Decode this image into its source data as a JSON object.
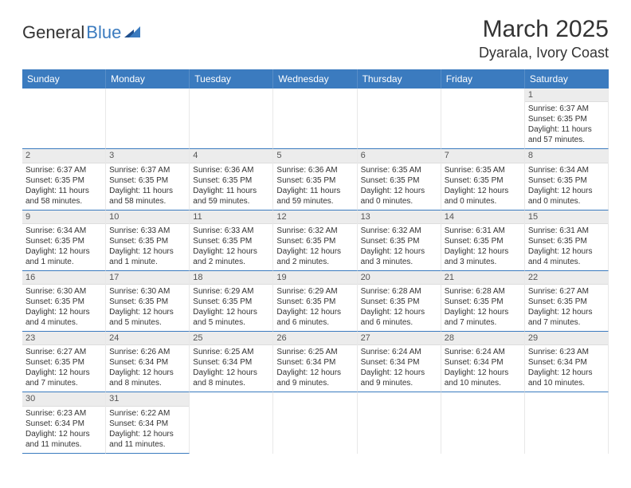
{
  "logo": {
    "part1": "General",
    "part2": "Blue"
  },
  "title": "March 2025",
  "location": "Dyarala, Ivory Coast",
  "weekdays": [
    "Sunday",
    "Monday",
    "Tuesday",
    "Wednesday",
    "Thursday",
    "Friday",
    "Saturday"
  ],
  "colors": {
    "header_bg": "#3b7bbf",
    "header_text": "#ffffff",
    "daynum_bg": "#ececec",
    "cell_border_bottom": "#3b7bbf",
    "cell_border_right": "#e8e8e8",
    "text": "#333333"
  },
  "layout": {
    "leading_blank_cells": 6,
    "total_cells": 42
  },
  "days": [
    {
      "n": "1",
      "sunrise": "Sunrise: 6:37 AM",
      "sunset": "Sunset: 6:35 PM",
      "daylight": "Daylight: 11 hours and 57 minutes."
    },
    {
      "n": "2",
      "sunrise": "Sunrise: 6:37 AM",
      "sunset": "Sunset: 6:35 PM",
      "daylight": "Daylight: 11 hours and 58 minutes."
    },
    {
      "n": "3",
      "sunrise": "Sunrise: 6:37 AM",
      "sunset": "Sunset: 6:35 PM",
      "daylight": "Daylight: 11 hours and 58 minutes."
    },
    {
      "n": "4",
      "sunrise": "Sunrise: 6:36 AM",
      "sunset": "Sunset: 6:35 PM",
      "daylight": "Daylight: 11 hours and 59 minutes."
    },
    {
      "n": "5",
      "sunrise": "Sunrise: 6:36 AM",
      "sunset": "Sunset: 6:35 PM",
      "daylight": "Daylight: 11 hours and 59 minutes."
    },
    {
      "n": "6",
      "sunrise": "Sunrise: 6:35 AM",
      "sunset": "Sunset: 6:35 PM",
      "daylight": "Daylight: 12 hours and 0 minutes."
    },
    {
      "n": "7",
      "sunrise": "Sunrise: 6:35 AM",
      "sunset": "Sunset: 6:35 PM",
      "daylight": "Daylight: 12 hours and 0 minutes."
    },
    {
      "n": "8",
      "sunrise": "Sunrise: 6:34 AM",
      "sunset": "Sunset: 6:35 PM",
      "daylight": "Daylight: 12 hours and 0 minutes."
    },
    {
      "n": "9",
      "sunrise": "Sunrise: 6:34 AM",
      "sunset": "Sunset: 6:35 PM",
      "daylight": "Daylight: 12 hours and 1 minute."
    },
    {
      "n": "10",
      "sunrise": "Sunrise: 6:33 AM",
      "sunset": "Sunset: 6:35 PM",
      "daylight": "Daylight: 12 hours and 1 minute."
    },
    {
      "n": "11",
      "sunrise": "Sunrise: 6:33 AM",
      "sunset": "Sunset: 6:35 PM",
      "daylight": "Daylight: 12 hours and 2 minutes."
    },
    {
      "n": "12",
      "sunrise": "Sunrise: 6:32 AM",
      "sunset": "Sunset: 6:35 PM",
      "daylight": "Daylight: 12 hours and 2 minutes."
    },
    {
      "n": "13",
      "sunrise": "Sunrise: 6:32 AM",
      "sunset": "Sunset: 6:35 PM",
      "daylight": "Daylight: 12 hours and 3 minutes."
    },
    {
      "n": "14",
      "sunrise": "Sunrise: 6:31 AM",
      "sunset": "Sunset: 6:35 PM",
      "daylight": "Daylight: 12 hours and 3 minutes."
    },
    {
      "n": "15",
      "sunrise": "Sunrise: 6:31 AM",
      "sunset": "Sunset: 6:35 PM",
      "daylight": "Daylight: 12 hours and 4 minutes."
    },
    {
      "n": "16",
      "sunrise": "Sunrise: 6:30 AM",
      "sunset": "Sunset: 6:35 PM",
      "daylight": "Daylight: 12 hours and 4 minutes."
    },
    {
      "n": "17",
      "sunrise": "Sunrise: 6:30 AM",
      "sunset": "Sunset: 6:35 PM",
      "daylight": "Daylight: 12 hours and 5 minutes."
    },
    {
      "n": "18",
      "sunrise": "Sunrise: 6:29 AM",
      "sunset": "Sunset: 6:35 PM",
      "daylight": "Daylight: 12 hours and 5 minutes."
    },
    {
      "n": "19",
      "sunrise": "Sunrise: 6:29 AM",
      "sunset": "Sunset: 6:35 PM",
      "daylight": "Daylight: 12 hours and 6 minutes."
    },
    {
      "n": "20",
      "sunrise": "Sunrise: 6:28 AM",
      "sunset": "Sunset: 6:35 PM",
      "daylight": "Daylight: 12 hours and 6 minutes."
    },
    {
      "n": "21",
      "sunrise": "Sunrise: 6:28 AM",
      "sunset": "Sunset: 6:35 PM",
      "daylight": "Daylight: 12 hours and 7 minutes."
    },
    {
      "n": "22",
      "sunrise": "Sunrise: 6:27 AM",
      "sunset": "Sunset: 6:35 PM",
      "daylight": "Daylight: 12 hours and 7 minutes."
    },
    {
      "n": "23",
      "sunrise": "Sunrise: 6:27 AM",
      "sunset": "Sunset: 6:35 PM",
      "daylight": "Daylight: 12 hours and 7 minutes."
    },
    {
      "n": "24",
      "sunrise": "Sunrise: 6:26 AM",
      "sunset": "Sunset: 6:34 PM",
      "daylight": "Daylight: 12 hours and 8 minutes."
    },
    {
      "n": "25",
      "sunrise": "Sunrise: 6:25 AM",
      "sunset": "Sunset: 6:34 PM",
      "daylight": "Daylight: 12 hours and 8 minutes."
    },
    {
      "n": "26",
      "sunrise": "Sunrise: 6:25 AM",
      "sunset": "Sunset: 6:34 PM",
      "daylight": "Daylight: 12 hours and 9 minutes."
    },
    {
      "n": "27",
      "sunrise": "Sunrise: 6:24 AM",
      "sunset": "Sunset: 6:34 PM",
      "daylight": "Daylight: 12 hours and 9 minutes."
    },
    {
      "n": "28",
      "sunrise": "Sunrise: 6:24 AM",
      "sunset": "Sunset: 6:34 PM",
      "daylight": "Daylight: 12 hours and 10 minutes."
    },
    {
      "n": "29",
      "sunrise": "Sunrise: 6:23 AM",
      "sunset": "Sunset: 6:34 PM",
      "daylight": "Daylight: 12 hours and 10 minutes."
    },
    {
      "n": "30",
      "sunrise": "Sunrise: 6:23 AM",
      "sunset": "Sunset: 6:34 PM",
      "daylight": "Daylight: 12 hours and 11 minutes."
    },
    {
      "n": "31",
      "sunrise": "Sunrise: 6:22 AM",
      "sunset": "Sunset: 6:34 PM",
      "daylight": "Daylight: 12 hours and 11 minutes."
    }
  ]
}
